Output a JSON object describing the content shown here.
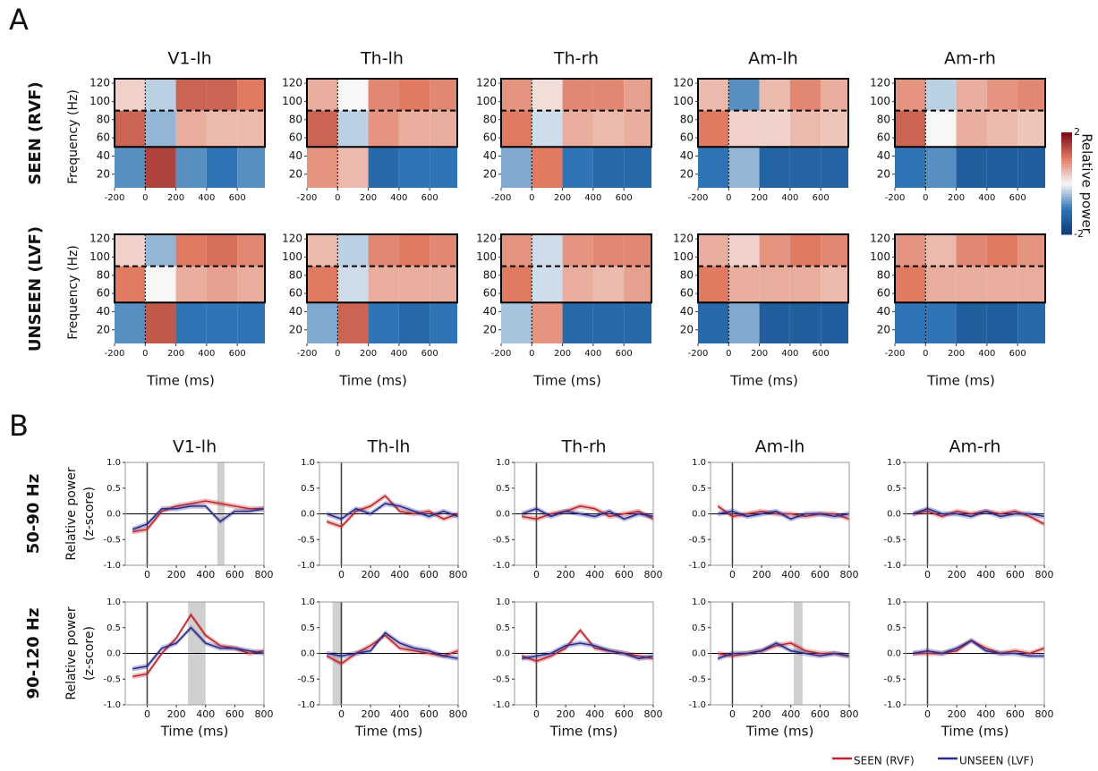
{
  "figure": {
    "panel_labels": [
      "A",
      "B"
    ]
  },
  "chart_data": [
    {
      "type": "heatmap",
      "columns": [
        "V1-lh",
        "Th-lh",
        "Th-rh",
        "Am-lh",
        "Am-rh"
      ],
      "rows": [
        "SEEN (RVF)",
        "UNSEEN (LVF)"
      ],
      "y_label": "Frequency (Hz)",
      "x_label": "Time (ms)",
      "xlim": [
        -200,
        780
      ],
      "ylim": [
        5,
        125
      ],
      "xticks": [
        -200,
        0,
        200,
        400,
        600
      ],
      "yticks": [
        20,
        40,
        60,
        80,
        100,
        120
      ],
      "x_edges": [
        -200,
        0,
        200,
        400,
        600,
        780
      ],
      "y_edges": [
        5,
        50,
        90,
        125
      ],
      "box": [
        50,
        125
      ],
      "hline": 90,
      "vline": 0,
      "colorbar": {
        "label": "Relative power",
        "lim": [
          -2,
          2
        ],
        "ticks": [
          2,
          -2
        ],
        "colors": [
          "#0d3b78",
          "#2f75b5",
          "#f7f7f7",
          "#e07b62",
          "#7a0a16"
        ]
      },
      "z": [
        [
          [
            [
              -0.8,
              1.5,
              -0.8,
              -1.0,
              -0.8
            ],
            [
              1.2,
              -0.5,
              0.6,
              0.5,
              0.5
            ],
            [
              0.3,
              -0.3,
              1.2,
              1.2,
              1.0
            ]
          ],
          [
            [
              0.8,
              0.5,
              -1.2,
              -1.0,
              -1.0
            ],
            [
              1.2,
              -0.3,
              0.8,
              0.6,
              0.6
            ],
            [
              0.6,
              0.0,
              0.9,
              1.0,
              0.9
            ]
          ],
          [
            [
              -0.6,
              1.0,
              -1.0,
              -1.2,
              -1.2
            ],
            [
              1.0,
              -0.2,
              0.6,
              0.5,
              0.6
            ],
            [
              0.8,
              0.2,
              0.9,
              0.9,
              0.7
            ]
          ],
          [
            [
              -1.0,
              -0.5,
              -1.3,
              -1.3,
              -1.3
            ],
            [
              1.0,
              0.3,
              0.3,
              0.5,
              0.4
            ],
            [
              0.5,
              -0.8,
              0.5,
              0.9,
              0.6
            ]
          ],
          [
            [
              -1.0,
              -0.8,
              -1.4,
              -1.4,
              -1.4
            ],
            [
              1.2,
              0.0,
              0.6,
              0.5,
              0.4
            ],
            [
              0.8,
              -0.3,
              0.6,
              0.8,
              0.9
            ]
          ]
        ],
        [
          [
            [
              -0.8,
              1.3,
              -1.0,
              -1.0,
              -1.0
            ],
            [
              1.0,
              0.0,
              0.6,
              0.7,
              0.6
            ],
            [
              0.3,
              -0.5,
              1.0,
              1.1,
              0.9
            ]
          ],
          [
            [
              -0.6,
              1.2,
              -1.0,
              -1.2,
              -1.0
            ],
            [
              1.0,
              -0.2,
              0.6,
              0.6,
              0.6
            ],
            [
              0.5,
              -0.3,
              0.9,
              1.0,
              0.9
            ]
          ],
          [
            [
              -0.4,
              0.8,
              -1.2,
              -1.2,
              -1.2
            ],
            [
              1.0,
              -0.2,
              0.6,
              0.5,
              0.7
            ],
            [
              0.8,
              -0.2,
              0.8,
              0.9,
              0.9
            ]
          ],
          [
            [
              -1.2,
              -0.6,
              -1.4,
              -1.4,
              -1.4
            ],
            [
              1.0,
              0.6,
              0.6,
              0.6,
              0.5
            ],
            [
              0.6,
              0.3,
              0.8,
              1.0,
              0.9
            ]
          ],
          [
            [
              -1.0,
              -1.0,
              -1.4,
              -1.4,
              -1.2
            ],
            [
              1.0,
              0.6,
              0.6,
              0.6,
              0.6
            ],
            [
              0.8,
              0.5,
              0.9,
              1.0,
              0.8
            ]
          ]
        ]
      ]
    },
    {
      "type": "line",
      "columns": [
        "V1-lh",
        "Th-lh",
        "Th-rh",
        "Am-lh",
        "Am-rh"
      ],
      "rows": [
        "50-90 Hz",
        "90-120 Hz"
      ],
      "y_label": [
        "Relative power",
        "(z-score)"
      ],
      "x_label": "Time (ms)",
      "xlim": [
        -150,
        800
      ],
      "ylim": [
        -1,
        1
      ],
      "xticks": [
        0,
        200,
        400,
        600,
        800
      ],
      "yticks": [
        {
          "value": -1,
          "label": "-1.0"
        },
        {
          "value": -0.5,
          "label": "-0.5"
        },
        {
          "value": 0,
          "label": "0.0"
        },
        {
          "value": 0.5,
          "label": "0.5"
        },
        {
          "value": 1,
          "label": "1.0"
        }
      ],
      "vline": 0,
      "hline": 0,
      "sem": 0.05,
      "shade_color": "#d0d0d0",
      "x": [
        -100,
        0,
        100,
        200,
        300,
        400,
        500,
        600,
        700,
        800
      ],
      "series": [
        {
          "name": "SEEN (RVF)",
          "color": "#c0272d"
        },
        {
          "name": "UNSEEN (LVF)",
          "color": "#2b2b8c"
        }
      ],
      "values": [
        [
          [
            [
              -0.35,
              -0.3,
              0.05,
              0.15,
              0.2,
              0.25,
              0.2,
              0.15,
              0.1,
              0.1
            ],
            [
              -0.3,
              -0.2,
              0.1,
              0.1,
              0.15,
              0.15,
              -0.15,
              0.05,
              0.05,
              0.1
            ]
          ],
          [
            [
              -0.15,
              -0.25,
              0.05,
              0.15,
              0.35,
              0.05,
              0.0,
              0.05,
              -0.1,
              0.0
            ],
            [
              0.0,
              -0.1,
              0.1,
              0.0,
              0.2,
              0.15,
              0.05,
              -0.05,
              0.05,
              -0.05
            ]
          ],
          [
            [
              -0.05,
              -0.1,
              0.0,
              0.05,
              0.15,
              0.1,
              -0.05,
              0.0,
              0.05,
              -0.1
            ],
            [
              0.0,
              0.1,
              -0.05,
              0.05,
              0.0,
              -0.05,
              0.05,
              -0.1,
              0.0,
              -0.05
            ]
          ],
          [
            [
              0.15,
              -0.05,
              0.0,
              0.05,
              0.0,
              0.0,
              -0.05,
              0.0,
              0.0,
              -0.1
            ],
            [
              0.0,
              0.05,
              -0.05,
              0.0,
              0.05,
              -0.1,
              0.0,
              0.0,
              -0.05,
              0.0
            ]
          ],
          [
            [
              0.0,
              0.05,
              -0.05,
              0.05,
              0.0,
              0.05,
              0.0,
              0.05,
              -0.05,
              -0.2
            ],
            [
              0.0,
              0.1,
              0.0,
              0.0,
              -0.05,
              0.05,
              -0.05,
              0.0,
              0.0,
              -0.05
            ]
          ]
        ],
        [
          [
            [
              -0.45,
              -0.4,
              0.0,
              0.3,
              0.75,
              0.35,
              0.15,
              0.1,
              0.0,
              0.05
            ],
            [
              -0.3,
              -0.25,
              0.1,
              0.2,
              0.5,
              0.2,
              0.1,
              0.1,
              0.05,
              0.0
            ]
          ],
          [
            [
              -0.05,
              -0.2,
              0.0,
              0.15,
              0.35,
              0.1,
              0.05,
              0.0,
              -0.05,
              0.05
            ],
            [
              0.0,
              -0.05,
              0.0,
              0.05,
              0.4,
              0.2,
              0.1,
              0.05,
              -0.05,
              -0.1
            ]
          ],
          [
            [
              -0.05,
              -0.15,
              -0.05,
              0.1,
              0.45,
              0.1,
              0.05,
              0.0,
              -0.05,
              -0.1
            ],
            [
              -0.1,
              -0.05,
              0.0,
              0.15,
              0.2,
              0.15,
              0.05,
              0.0,
              -0.1,
              -0.05
            ]
          ],
          [
            [
              0.0,
              -0.05,
              0.0,
              0.05,
              0.15,
              0.2,
              0.05,
              0.0,
              0.0,
              -0.05
            ],
            [
              -0.1,
              0.0,
              0.0,
              0.05,
              0.2,
              0.05,
              0.0,
              -0.05,
              0.0,
              -0.05
            ]
          ],
          [
            [
              0.0,
              0.0,
              0.0,
              0.05,
              0.25,
              0.1,
              0.0,
              0.05,
              0.0,
              0.1
            ],
            [
              0.0,
              0.05,
              0.0,
              0.1,
              0.25,
              0.05,
              0.0,
              0.0,
              -0.05,
              -0.05
            ]
          ]
        ]
      ],
      "shades": [
        [
          [
            [
              480,
              530
            ]
          ],
          [],
          [],
          [],
          []
        ],
        [
          [
            [
              280,
              400
            ]
          ],
          [
            [
              -60,
              0
            ]
          ],
          [],
          [
            [
              420,
              480
            ]
          ],
          []
        ]
      ]
    }
  ]
}
